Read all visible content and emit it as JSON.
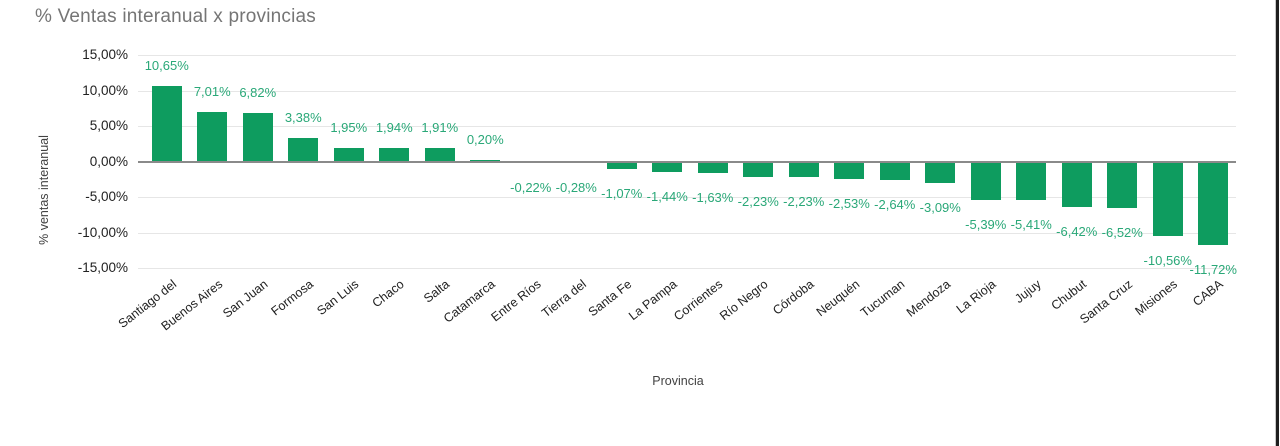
{
  "window": {
    "edge_color": "#1f1f1f"
  },
  "chart_data": {
    "type": "bar",
    "title": "% Ventas interanual x provincias",
    "xlabel": "Provincia",
    "ylabel": "% ventas interanual",
    "legend": "none",
    "grid": true,
    "ylim": [
      -15,
      15
    ],
    "categories": [
      "Santiago del",
      "Buenos Aires",
      "San Juan",
      "Formosa",
      "San Luis",
      "Chaco",
      "Salta",
      "Catamarca",
      "Entre Ríos",
      "Tierra del",
      "Santa Fe",
      "La Pampa",
      "Corrientes",
      "Río Negro",
      "Córdoba",
      "Neuquén",
      "Tucuman",
      "Mendoza",
      "La Rioja",
      "Jujuy",
      "Chubut",
      "Santa Cruz",
      "Misiones",
      "CABA"
    ],
    "values": [
      10.65,
      7.01,
      6.82,
      3.38,
      1.95,
      1.94,
      1.91,
      0.2,
      -0.22,
      -0.28,
      -1.07,
      -1.44,
      -1.63,
      -2.23,
      -2.23,
      -2.53,
      -2.64,
      -3.09,
      -5.39,
      -5.41,
      -6.42,
      -6.52,
      -10.56,
      -11.72
    ],
    "labels": [
      "10,65%",
      "7,01%",
      "6,82%",
      "3,38%",
      "1,95%",
      "1,94%",
      "1,91%",
      "0,20%",
      "-0,22%",
      "-0,28%",
      "-1,07%",
      "-1,44%",
      "-1,63%",
      "-2,23%",
      "-2,23%",
      "-2,53%",
      "-2,64%",
      "-3,09%",
      "-5,39%",
      "-5,41%",
      "-6,42%",
      "-6,52%",
      "-10,56%",
      "-11,72%"
    ],
    "y_ticks": [
      "15,00%",
      "10,00%",
      "5,00%",
      "0,00%",
      "-5,00%",
      "-10,00%",
      "-15,00%"
    ],
    "y_tick_values": [
      15,
      10,
      5,
      0,
      -5,
      -10,
      -15
    ],
    "colors": {
      "bar": "#0e9c5f",
      "data_label": "#2aa878",
      "title": "#757575",
      "axis_title": "#424242",
      "tick_label": "#212121",
      "gridline": "#e6e6e6",
      "zero_line": "#8a8a8a"
    }
  }
}
